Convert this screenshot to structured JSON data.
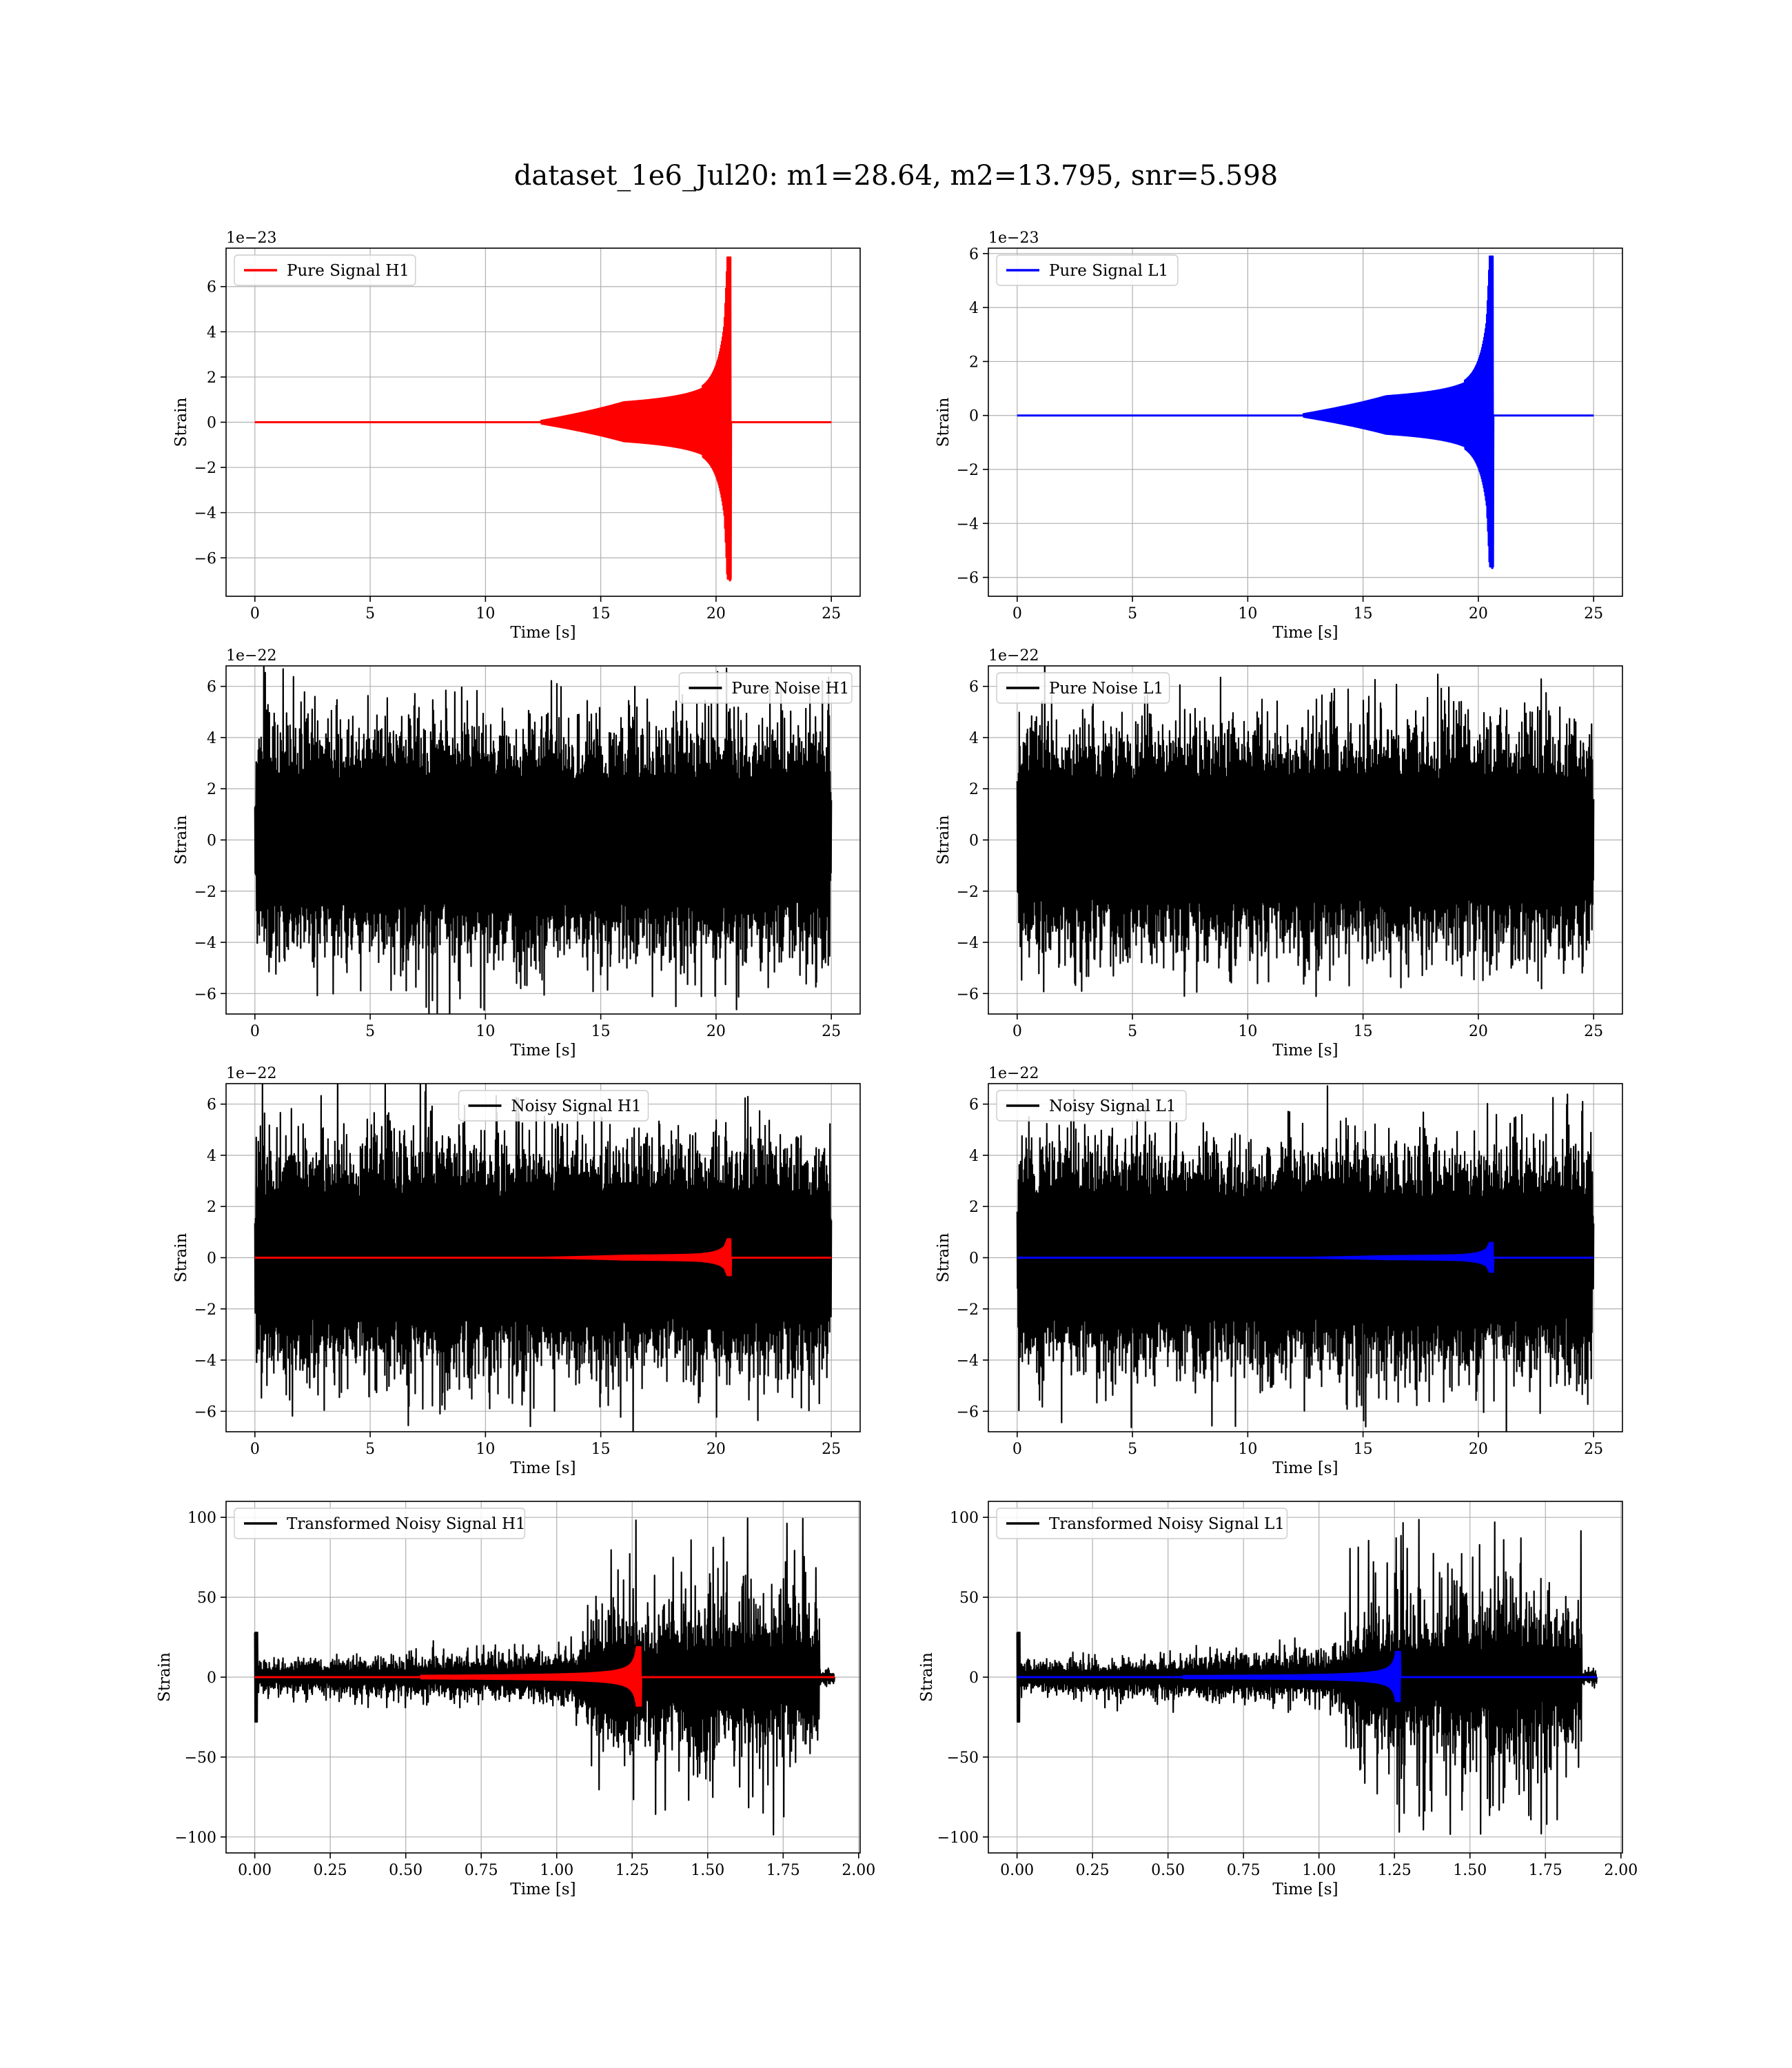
{
  "title": "dataset_1e6_Jul20: m1=28.64, m2=13.795, snr=5.598",
  "colors": {
    "h1": "#ff0000",
    "l1": "#0000ff",
    "noise": "#000000"
  },
  "chart_data": [
    {
      "type": "line",
      "legend": "top-left",
      "series": [
        {
          "name": "Pure Signal H1",
          "color": "#ff0000",
          "kind": "chirp",
          "amp": 7.3,
          "tc": 20.6,
          "seed": 11
        }
      ],
      "xlabel": "Time [s]",
      "ylabel": "Strain",
      "offset_label": "1e−23",
      "xlim": [
        -1.25,
        26.25
      ],
      "ylim": [
        -7.7,
        7.7
      ],
      "xticks": [
        0,
        5,
        10,
        15,
        20,
        25
      ],
      "xticklabels": [
        "0",
        "5",
        "10",
        "15",
        "20",
        "25"
      ],
      "yticks": [
        -6,
        -4,
        -2,
        0,
        2,
        4,
        6
      ],
      "yticklabels": [
        "−6",
        "−4",
        "−2",
        "0",
        "2",
        "4",
        "6"
      ],
      "grid": true
    },
    {
      "type": "line",
      "legend": "top-left",
      "series": [
        {
          "name": "Pure Signal L1",
          "color": "#0000ff",
          "kind": "chirp",
          "amp": 5.9,
          "tc": 20.6,
          "seed": 12
        }
      ],
      "xlabel": "Time [s]",
      "ylabel": "Strain",
      "offset_label": "1e−23",
      "xlim": [
        -1.25,
        26.25
      ],
      "ylim": [
        -6.7,
        6.2
      ],
      "xticks": [
        0,
        5,
        10,
        15,
        20,
        25
      ],
      "xticklabels": [
        "0",
        "5",
        "10",
        "15",
        "20",
        "25"
      ],
      "yticks": [
        -6,
        -4,
        -2,
        0,
        2,
        4,
        6
      ],
      "yticklabels": [
        "−6",
        "−4",
        "−2",
        "0",
        "2",
        "4",
        "6"
      ],
      "grid": true
    },
    {
      "type": "line",
      "legend": "top-right",
      "series": [
        {
          "name": "Pure Noise H1",
          "color": "#000000",
          "kind": "noise",
          "amp": 3.8,
          "seed": 21
        }
      ],
      "xlabel": "Time [s]",
      "ylabel": "Strain",
      "offset_label": "1e−22",
      "xlim": [
        -1.25,
        26.25
      ],
      "ylim": [
        -6.8,
        6.8
      ],
      "xticks": [
        0,
        5,
        10,
        15,
        20,
        25
      ],
      "xticklabels": [
        "0",
        "5",
        "10",
        "15",
        "20",
        "25"
      ],
      "yticks": [
        -6,
        -4,
        -2,
        0,
        2,
        4,
        6
      ],
      "yticklabels": [
        "−6",
        "−4",
        "−2",
        "0",
        "2",
        "4",
        "6"
      ],
      "grid": true
    },
    {
      "type": "line",
      "legend": "top-left",
      "series": [
        {
          "name": "Pure Noise L1",
          "color": "#000000",
          "kind": "noise",
          "amp": 3.7,
          "seed": 22
        }
      ],
      "xlabel": "Time [s]",
      "ylabel": "Strain",
      "offset_label": "1e−22",
      "xlim": [
        -1.25,
        26.25
      ],
      "ylim": [
        -6.8,
        6.8
      ],
      "xticks": [
        0,
        5,
        10,
        15,
        20,
        25
      ],
      "xticklabels": [
        "0",
        "5",
        "10",
        "15",
        "20",
        "25"
      ],
      "yticks": [
        -6,
        -4,
        -2,
        0,
        2,
        4,
        6
      ],
      "yticklabels": [
        "−6",
        "−4",
        "−2",
        "0",
        "2",
        "4",
        "6"
      ],
      "grid": true
    },
    {
      "type": "line",
      "legend": "top-center",
      "series": [
        {
          "name": "Noisy Signal H1",
          "color": "#000000",
          "kind": "noise",
          "amp": 3.8,
          "seed": 21
        },
        {
          "color": "#ff0000",
          "kind": "chirp",
          "amp": 0.73,
          "tc": 20.6,
          "seed": 31
        }
      ],
      "xlabel": "Time [s]",
      "ylabel": "Strain",
      "offset_label": "1e−22",
      "xlim": [
        -1.25,
        26.25
      ],
      "ylim": [
        -6.8,
        6.8
      ],
      "xticks": [
        0,
        5,
        10,
        15,
        20,
        25
      ],
      "xticklabels": [
        "0",
        "5",
        "10",
        "15",
        "20",
        "25"
      ],
      "yticks": [
        -6,
        -4,
        -2,
        0,
        2,
        4,
        6
      ],
      "yticklabels": [
        "−6",
        "−4",
        "−2",
        "0",
        "2",
        "4",
        "6"
      ],
      "grid": true
    },
    {
      "type": "line",
      "legend": "top-left",
      "series": [
        {
          "name": "Noisy Signal L1",
          "color": "#000000",
          "kind": "noise",
          "amp": 3.7,
          "seed": 22
        },
        {
          "color": "#0000ff",
          "kind": "chirp",
          "amp": 0.59,
          "tc": 20.6,
          "seed": 32
        }
      ],
      "xlabel": "Time [s]",
      "ylabel": "Strain",
      "offset_label": "1e−22",
      "xlim": [
        -1.25,
        26.25
      ],
      "ylim": [
        -6.8,
        6.8
      ],
      "xticks": [
        0,
        5,
        10,
        15,
        20,
        25
      ],
      "xticklabels": [
        "0",
        "5",
        "10",
        "15",
        "20",
        "25"
      ],
      "yticks": [
        -6,
        -4,
        -2,
        0,
        2,
        4,
        6
      ],
      "yticklabels": [
        "−6",
        "−4",
        "−2",
        "0",
        "2",
        "4",
        "6"
      ],
      "grid": true
    },
    {
      "type": "line",
      "legend": "top-left",
      "series": [
        {
          "name": "Transformed Noisy Signal H1",
          "color": "#000000",
          "kind": "transformed",
          "seed": 41
        },
        {
          "color": "#ff0000",
          "kind": "chirp",
          "amp": 19,
          "tc": 1.27,
          "tstart": 0.55,
          "tend": 1.91,
          "seed": 42
        }
      ],
      "xlabel": "Time [s]",
      "ylabel": "Strain",
      "xlim": [
        -0.095,
        2.005
      ],
      "ylim": [
        -110,
        110
      ],
      "xticks": [
        0,
        0.25,
        0.5,
        0.75,
        1.0,
        1.25,
        1.5,
        1.75,
        2.0
      ],
      "xticklabels": [
        "0.00",
        "0.25",
        "0.50",
        "0.75",
        "1.00",
        "1.25",
        "1.50",
        "1.75",
        "2.00"
      ],
      "yticks": [
        -100,
        -50,
        0,
        50,
        100
      ],
      "yticklabels": [
        "−100",
        "−50",
        "0",
        "50",
        "100"
      ],
      "grid": true
    },
    {
      "type": "line",
      "legend": "top-left",
      "series": [
        {
          "name": "Transformed Noisy Signal L1",
          "color": "#000000",
          "kind": "transformed",
          "seed": 51
        },
        {
          "color": "#0000ff",
          "kind": "chirp",
          "amp": 16,
          "tc": 1.26,
          "tstart": 0.55,
          "tend": 1.91,
          "seed": 52
        }
      ],
      "xlabel": "Time [s]",
      "ylabel": "Strain",
      "xlim": [
        -0.095,
        2.005
      ],
      "ylim": [
        -110,
        110
      ],
      "xticks": [
        0,
        0.25,
        0.5,
        0.75,
        1.0,
        1.25,
        1.5,
        1.75,
        2.0
      ],
      "xticklabels": [
        "0.00",
        "0.25",
        "0.50",
        "0.75",
        "1.00",
        "1.25",
        "1.50",
        "1.75",
        "2.00"
      ],
      "yticks": [
        -100,
        -50,
        0,
        50,
        100
      ],
      "yticklabels": [
        "−100",
        "−50",
        "0",
        "50",
        "100"
      ],
      "grid": true
    }
  ]
}
